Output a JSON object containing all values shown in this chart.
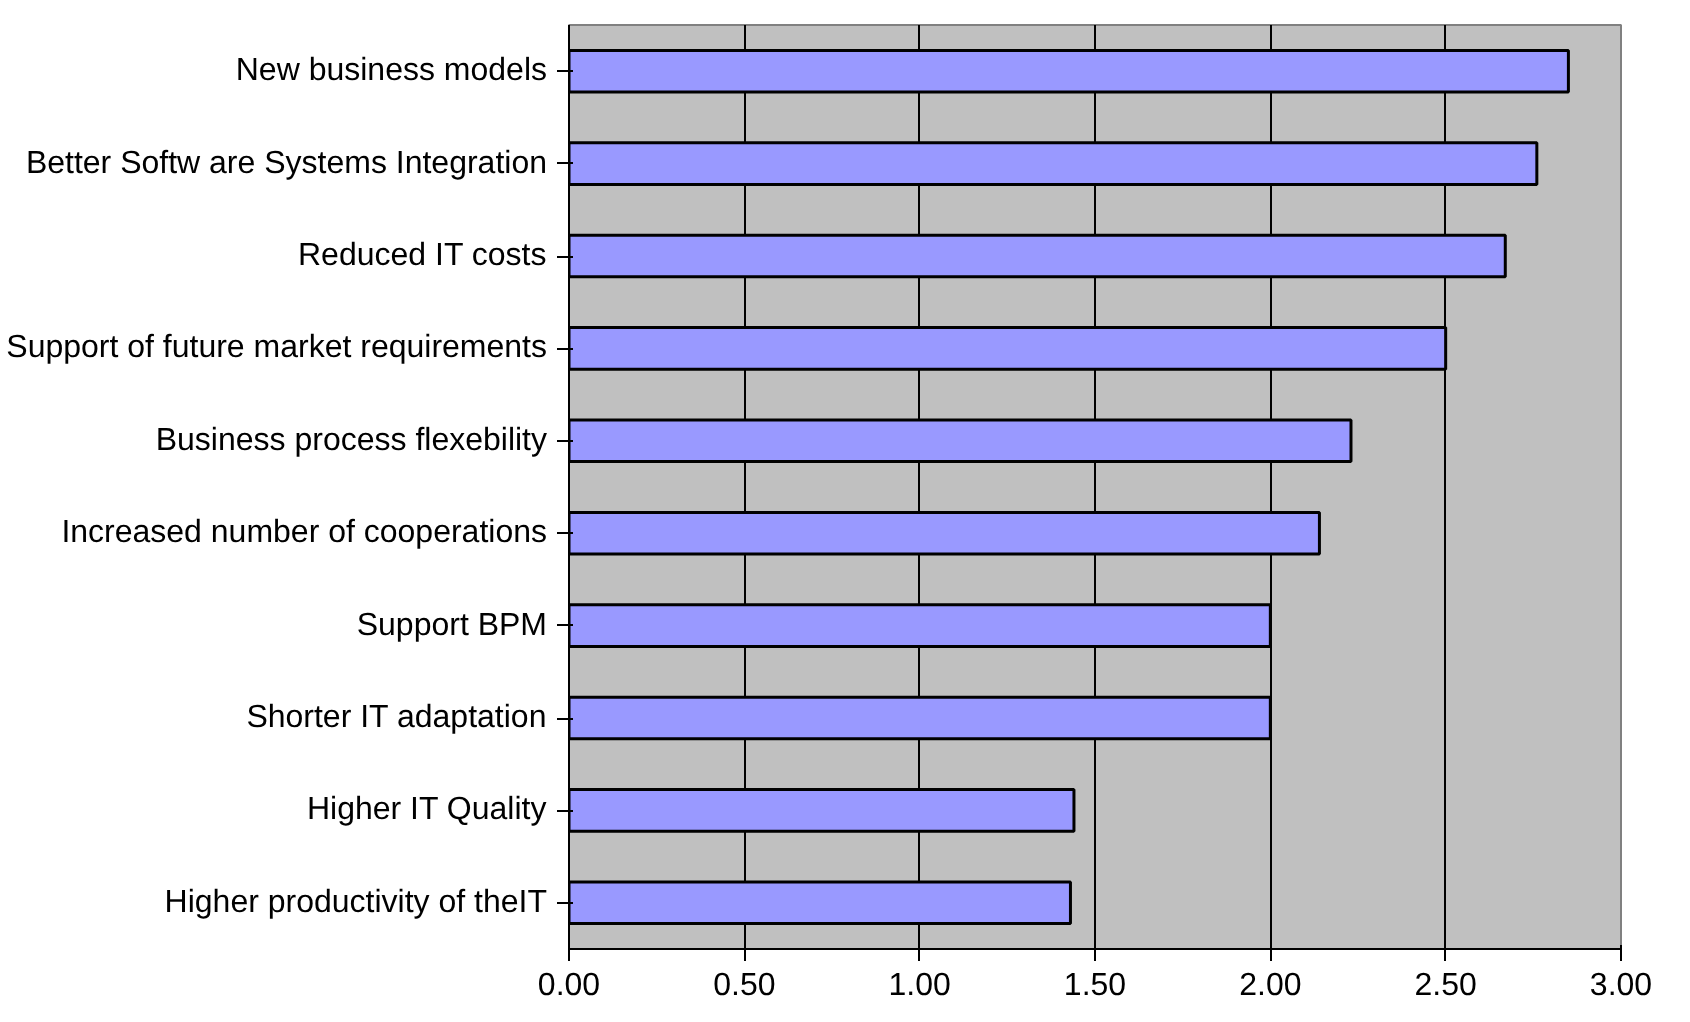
{
  "chart_data": {
    "type": "bar",
    "orientation": "horizontal",
    "categories": [
      "New business models",
      "Better Softw are Systems Integration",
      "Reduced IT costs",
      "Support of future market requirements",
      "Business process flexebility",
      "Increased number of cooperations",
      "Support BPM",
      "Shorter IT adaptation",
      "Higher IT Quality",
      "Higher productivity of theIT"
    ],
    "values": [
      2.85,
      2.76,
      2.67,
      2.5,
      2.23,
      2.14,
      2.0,
      2.0,
      1.44,
      1.43
    ],
    "color": "#9999ff",
    "xlim": [
      0,
      3
    ],
    "xticks": [
      {
        "value": 0,
        "label": "0.00"
      },
      {
        "value": 0.5,
        "label": "0.50"
      },
      {
        "value": 1,
        "label": "1.00"
      },
      {
        "value": 1.5,
        "label": "1.50"
      },
      {
        "value": 2,
        "label": "2.00"
      },
      {
        "value": 2.5,
        "label": "2.50"
      },
      {
        "value": 3,
        "label": "3.00"
      }
    ],
    "grid": "x"
  }
}
